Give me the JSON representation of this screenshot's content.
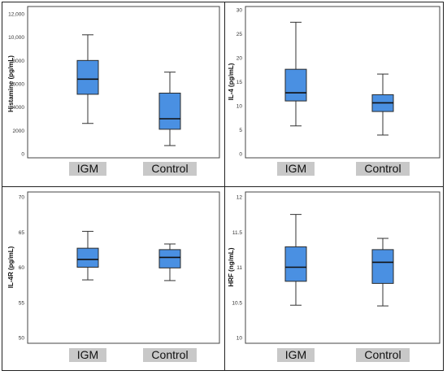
{
  "chart_data": [
    {
      "type": "boxplot",
      "ylabel": "Histamine (pg/mL)",
      "ylim": [
        0,
        12000
      ],
      "yticks": [
        0,
        2000,
        4000,
        6000,
        8000,
        10000,
        12000
      ],
      "yticklabels": [
        "0",
        "2000",
        "4000",
        "6000",
        "8000",
        "10,000",
        "12,000"
      ],
      "categories": [
        "IGM",
        "Control"
      ],
      "boxes": [
        {
          "min": 2600,
          "q1": 5100,
          "median": 6400,
          "q3": 8000,
          "max": 10200
        },
        {
          "min": 700,
          "q1": 2100,
          "median": 3000,
          "q3": 5200,
          "max": 7000
        }
      ],
      "box_color": "#4a90e2"
    },
    {
      "type": "boxplot",
      "ylabel": "IL-4 (pg/mL)",
      "ylim": [
        0,
        30
      ],
      "yticks": [
        0,
        5,
        10,
        15,
        20,
        25,
        30
      ],
      "yticklabels": [
        "0",
        "5",
        "10",
        "15",
        "20",
        "25",
        "30"
      ],
      "categories": [
        "IGM",
        "Control"
      ],
      "boxes": [
        {
          "min": 5.8,
          "q1": 11.0,
          "median": 12.7,
          "q3": 17.6,
          "max": 27.4
        },
        {
          "min": 3.9,
          "q1": 8.8,
          "median": 10.6,
          "q3": 12.3,
          "max": 16.6
        }
      ],
      "box_color": "#4a90e2"
    },
    {
      "type": "boxplot",
      "ylabel": "IL-4R (pg/mL)",
      "ylim": [
        50,
        70
      ],
      "yticks": [
        50,
        55,
        60,
        65,
        70
      ],
      "yticklabels": [
        "50",
        "55",
        "60",
        "65",
        "70"
      ],
      "categories": [
        "IGM",
        "Control"
      ],
      "boxes": [
        {
          "min": 58.2,
          "q1": 60.0,
          "median": 61.1,
          "q3": 62.7,
          "max": 65.1
        },
        {
          "min": 58.1,
          "q1": 59.9,
          "median": 61.4,
          "q3": 62.5,
          "max": 63.3
        }
      ],
      "box_color": "#4a90e2"
    },
    {
      "type": "boxplot",
      "ylabel": "HRF (ng/mL)",
      "ylim": [
        10,
        12
      ],
      "yticks": [
        10,
        10.5,
        11,
        11.5,
        12
      ],
      "yticklabels": [
        "10",
        "10.5",
        "11",
        "11.5",
        "12"
      ],
      "categories": [
        "IGM",
        "Control"
      ],
      "boxes": [
        {
          "min": 10.46,
          "q1": 10.8,
          "median": 11.0,
          "q3": 11.29,
          "max": 11.75
        },
        {
          "min": 10.45,
          "q1": 10.77,
          "median": 11.07,
          "q3": 11.25,
          "max": 11.41
        }
      ],
      "box_color": "#4a90e2"
    }
  ]
}
